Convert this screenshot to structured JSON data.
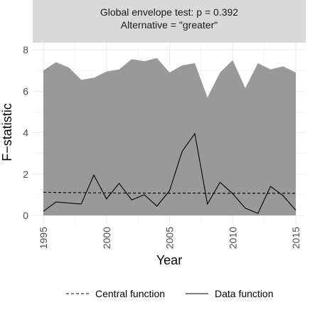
{
  "chart_data": {
    "type": "line",
    "facet_title": [
      "Global envelope test: p = 0.392",
      "Alternative = \"greater\""
    ],
    "xlabel": "Year",
    "ylabel": "F−statistic",
    "xlim": [
      1995,
      2015
    ],
    "ylim": [
      0,
      8
    ],
    "x_ticks": [
      1995,
      2000,
      2005,
      2010,
      2015
    ],
    "y_ticks": [
      0,
      2,
      4,
      6,
      8
    ],
    "grid": true,
    "legend_position": "bottom",
    "x": [
      1995,
      1996,
      1997,
      1998,
      1999,
      2000,
      2001,
      2002,
      2003,
      2004,
      2005,
      2006,
      2007,
      2008,
      2009,
      2010,
      2011,
      2012,
      2013,
      2014,
      2015
    ],
    "envelope_upper": [
      7.0,
      7.4,
      7.15,
      6.55,
      6.65,
      6.95,
      7.05,
      7.55,
      7.45,
      7.6,
      6.9,
      7.25,
      7.35,
      5.7,
      6.9,
      7.5,
      6.15,
      7.35,
      7.05,
      7.2,
      6.9
    ],
    "series": [
      {
        "name": "Central function",
        "line_style": "dashed",
        "values": [
          1.12,
          1.11,
          1.1,
          1.1,
          1.09,
          1.09,
          1.08,
          1.08,
          1.08,
          1.08,
          1.07,
          1.08,
          1.08,
          1.07,
          1.07,
          1.07,
          1.07,
          1.07,
          1.07,
          1.07,
          1.07
        ]
      },
      {
        "name": "Data function",
        "line_style": "solid",
        "values": [
          0.2,
          0.65,
          0.6,
          0.55,
          1.95,
          0.8,
          1.55,
          0.75,
          1.0,
          0.45,
          1.2,
          3.1,
          3.95,
          0.55,
          1.6,
          1.05,
          0.35,
          0.1,
          1.4,
          0.95,
          0.25
        ]
      }
    ],
    "colors": {
      "envelope": "#999999",
      "strip": "#d9d9d9",
      "grid": "#ebebeb",
      "line": "#000000"
    }
  }
}
